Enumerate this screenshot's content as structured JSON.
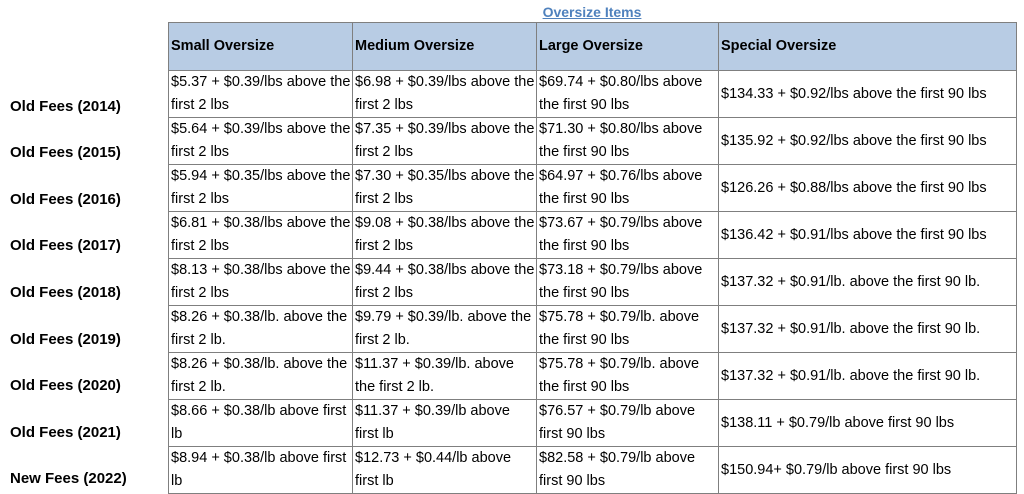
{
  "title": "Oversize Items",
  "columns": [
    "Small Oversize",
    "Medium Oversize",
    "Large Oversize",
    "Special Oversize"
  ],
  "rows": [
    {
      "label": "Old Fees (2014)",
      "cells": [
        "$5.37 + $0.39/lbs above the first 2 lbs",
        "$6.98 + $0.39/lbs above the first 2 lbs",
        "$69.74 + $0.80/lbs above the first 90 lbs",
        "$134.33 + $0.92/lbs above the first 90 lbs"
      ]
    },
    {
      "label": "Old Fees (2015)",
      "cells": [
        "$5.64 + $0.39/lbs above the first 2 lbs",
        "$7.35 + $0.39/lbs above the first 2 lbs",
        "$71.30 + $0.80/lbs above the first 90 lbs",
        "$135.92 + $0.92/lbs above the first 90 lbs"
      ]
    },
    {
      "label": "Old Fees (2016)",
      "cells": [
        "$5.94 + $0.35/lbs above the first 2 lbs",
        "$7.30 + $0.35/lbs above the first 2 lbs",
        "$64.97 + $0.76/lbs above the first 90 lbs",
        "$126.26 + $0.88/lbs above the first 90 lbs"
      ]
    },
    {
      "label": "Old Fees (2017)",
      "cells": [
        "$6.81 + $0.38/lbs above the first 2 lbs",
        "$9.08 + $0.38/lbs above the first 2 lbs",
        "$73.67 + $0.79/lbs above the first 90 lbs",
        "$136.42 + $0.91/lbs above the first 90 lbs"
      ]
    },
    {
      "label": "Old Fees (2018)",
      "cells": [
        "$8.13 + $0.38/lbs above the first 2 lbs",
        "$9.44 + $0.38/lbs above the first 2 lbs",
        "$73.18  + $0.79/lbs above the first 90 lbs",
        "$137.32 + $0.91/lb. above the first 90 lb."
      ]
    },
    {
      "label": "Old Fees (2019)",
      "cells": [
        "$8.26 + $0.38/lb. above the first 2 lb.",
        "$9.79 + $0.39/lb. above the first 2 lb.",
        "$75.78 +  $0.79/lb. above the first 90 lbs",
        "$137.32 + $0.91/lb. above the first 90 lb."
      ]
    },
    {
      "label": "Old Fees (2020)",
      "cells": [
        "$8.26 + $0.38/lb. above the first 2 lb.",
        "$11.37 + $0.39/lb. above the first 2 lb.",
        "$75.78 +  $0.79/lb. above the first 90 lbs",
        "$137.32 + $0.91/lb. above the first 90 lb."
      ]
    },
    {
      "label": "Old Fees (2021)",
      "cells": [
        "$8.66 + $0.38/lb above first lb",
        "$11.37 + $0.39/lb above first lb",
        "$76.57 + $0.79/lb above first 90 lbs",
        "$138.11 + $0.79/lb above first 90 lbs"
      ]
    },
    {
      "label": "New Fees (2022)",
      "cells": [
        "$8.94 + $0.38/lb above first lb",
        "$12.73 + $0.44/lb above first lb",
        "$82.58 + $0.79/lb above first 90 lbs",
        "$150.94+ $0.79/lb above first 90 lbs"
      ]
    }
  ]
}
